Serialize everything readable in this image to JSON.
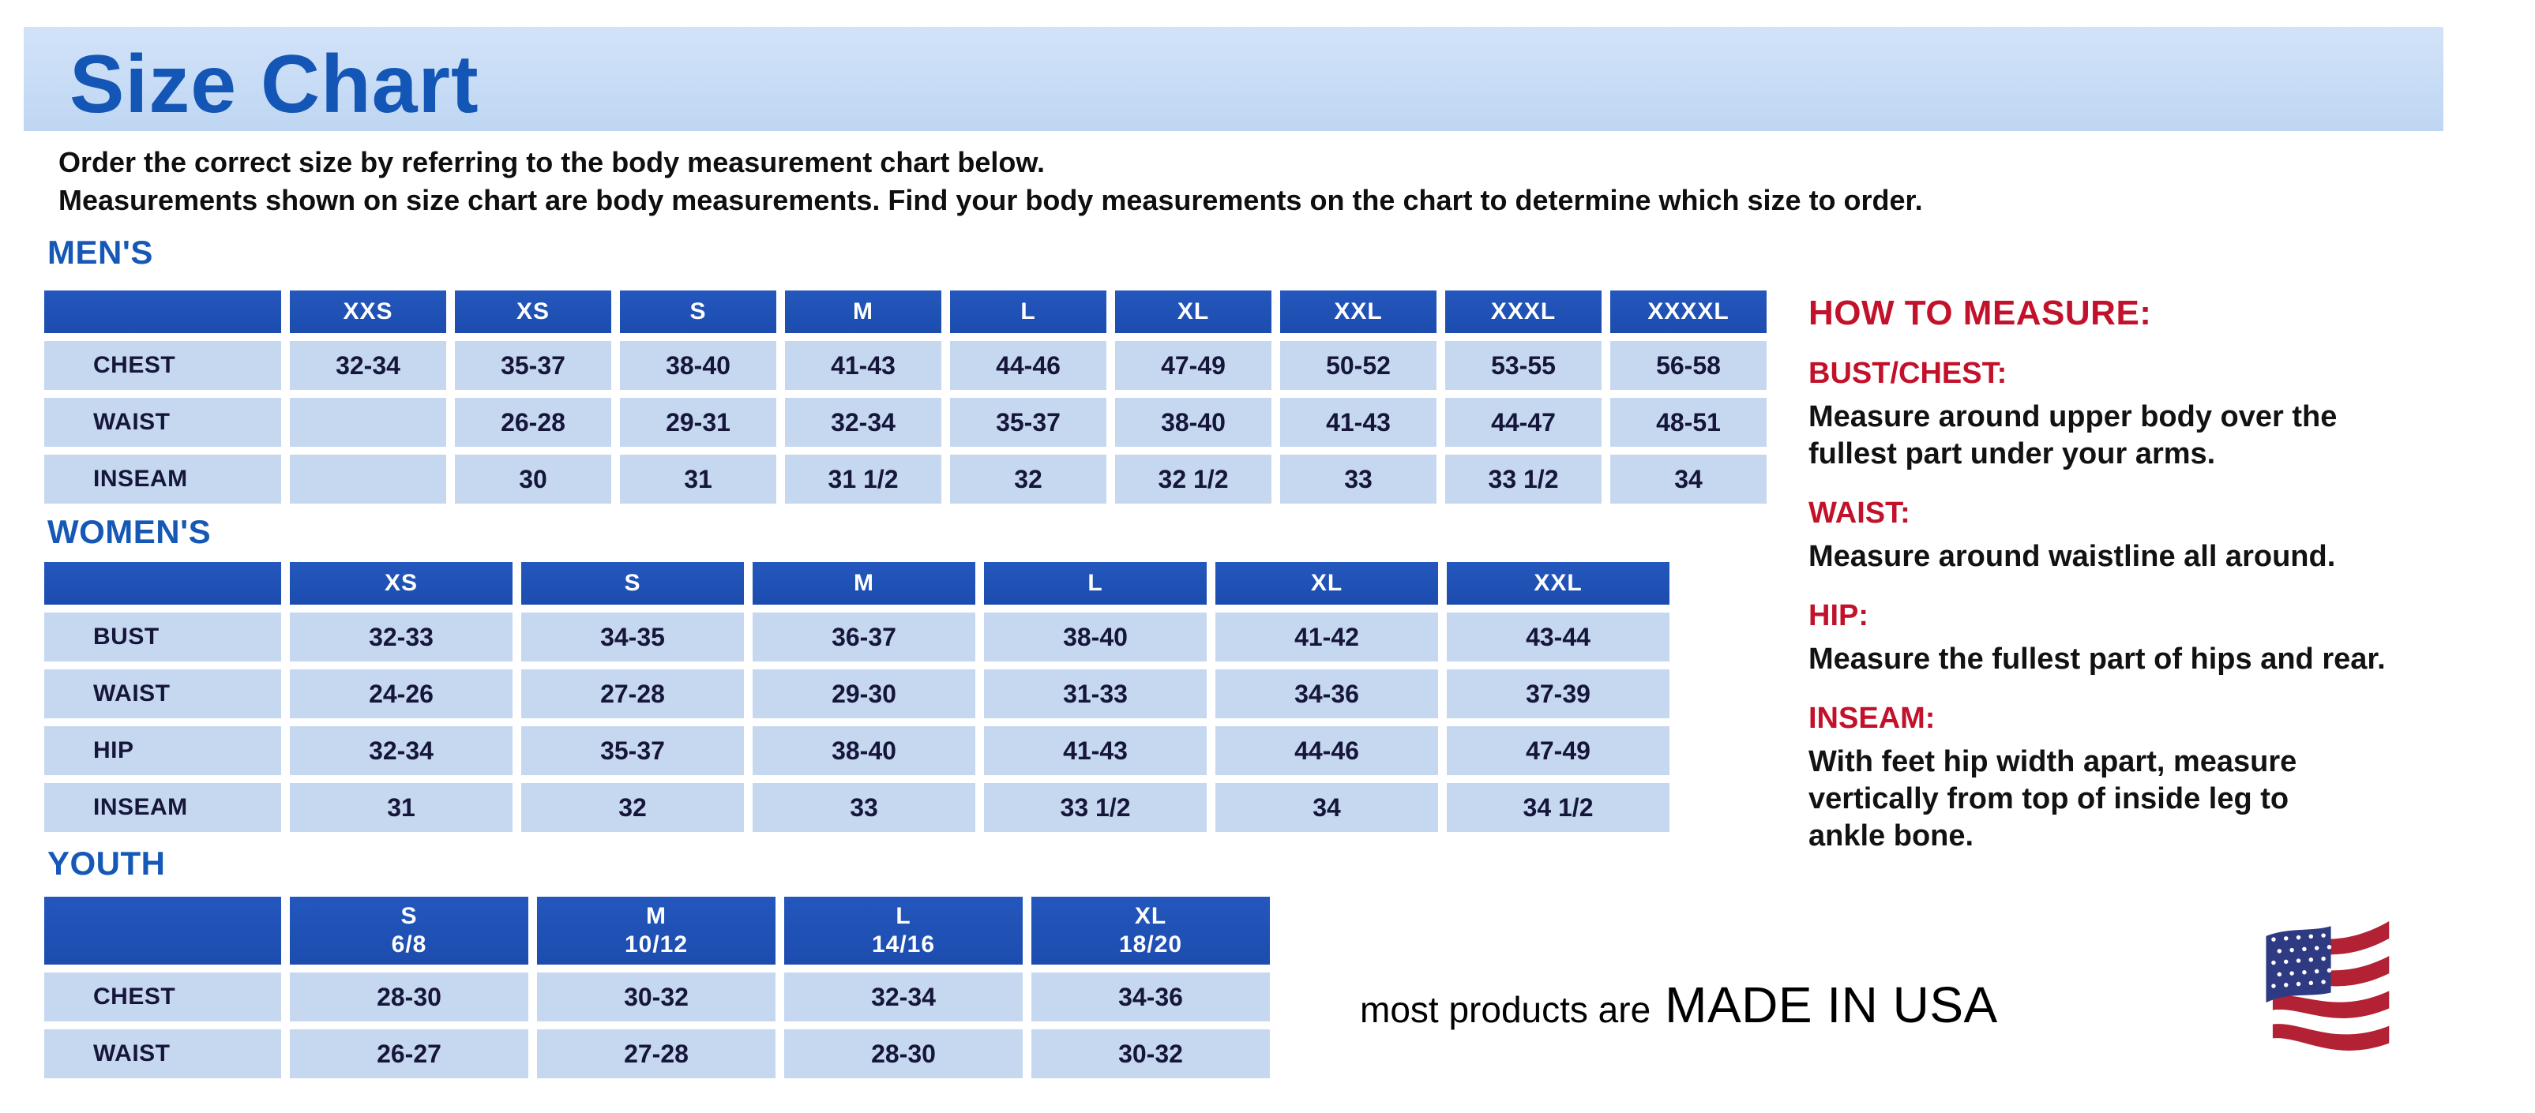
{
  "banner": {
    "title": "Size Chart"
  },
  "intro": {
    "line1": "Order the correct size by referring to the body measurement chart below.",
    "line2": "Measurements shown on size chart are body measurements.  Find your body measurements on the chart to determine which size to order."
  },
  "tables": {
    "mens": {
      "heading": "MEN'S",
      "sizes": [
        "XXS",
        "XS",
        "S",
        "M",
        "L",
        "XL",
        "XXL",
        "XXXL",
        "XXXXL"
      ],
      "rows": [
        {
          "label": "CHEST",
          "values": [
            "32-34",
            "35-37",
            "38-40",
            "41-43",
            "44-46",
            "47-49",
            "50-52",
            "53-55",
            "56-58"
          ]
        },
        {
          "label": "WAIST",
          "values": [
            "",
            "26-28",
            "29-31",
            "32-34",
            "35-37",
            "38-40",
            "41-43",
            "44-47",
            "48-51"
          ]
        },
        {
          "label": "INSEAM",
          "values": [
            "",
            "30",
            "31",
            "31 1/2",
            "32",
            "32 1/2",
            "33",
            "33 1/2",
            "34"
          ]
        }
      ]
    },
    "womens": {
      "heading": "WOMEN'S",
      "sizes": [
        "XS",
        "S",
        "M",
        "L",
        "XL",
        "XXL"
      ],
      "rows": [
        {
          "label": "BUST",
          "values": [
            "32-33",
            "34-35",
            "36-37",
            "38-40",
            "41-42",
            "43-44"
          ]
        },
        {
          "label": "WAIST",
          "values": [
            "24-26",
            "27-28",
            "29-30",
            "31-33",
            "34-36",
            "37-39"
          ]
        },
        {
          "label": "HIP",
          "values": [
            "32-34",
            "35-37",
            "38-40",
            "41-43",
            "44-46",
            "47-49"
          ]
        },
        {
          "label": "INSEAM",
          "values": [
            "31",
            "32",
            "33",
            "33 1/2",
            "34",
            "34 1/2"
          ]
        }
      ]
    },
    "youth": {
      "heading": "YOUTH",
      "sizes": [
        [
          "S",
          "6/8"
        ],
        [
          "M",
          "10/12"
        ],
        [
          "L",
          "14/16"
        ],
        [
          "XL",
          "18/20"
        ]
      ],
      "rows": [
        {
          "label": "CHEST",
          "values": [
            "28-30",
            "30-32",
            "32-34",
            "34-36"
          ]
        },
        {
          "label": "WAIST",
          "values": [
            "26-27",
            "27-28",
            "28-30",
            "30-32"
          ]
        }
      ]
    }
  },
  "how_to_measure": {
    "heading": "HOW TO MEASURE:",
    "items": [
      {
        "label": "BUST/CHEST:",
        "text": "Measure around upper body over the\nfullest part under your arms."
      },
      {
        "label": "WAIST:",
        "text": "Measure around waistline all around."
      },
      {
        "label": "HIP:",
        "text": "Measure the fullest part of hips and rear."
      },
      {
        "label": "INSEAM:",
        "text": "With feet hip width apart, measure\nvertically from top of inside leg to\nankle bone."
      }
    ]
  },
  "footer": {
    "prefix": "most products are",
    "emphasis": "MADE IN USA",
    "flag_icon": "us-flag-icon"
  },
  "colors": {
    "banner_bg": "#c6dbf5",
    "title_blue": "#1356b5",
    "heading_blue": "#1558b6",
    "table_header_blue": "#1f51b4",
    "cell_light_blue": "#c6d8f0",
    "cell_text": "#16163a",
    "accent_red": "#c2122b",
    "flag_red": "#b22234",
    "flag_navy": "#2e3a82"
  }
}
